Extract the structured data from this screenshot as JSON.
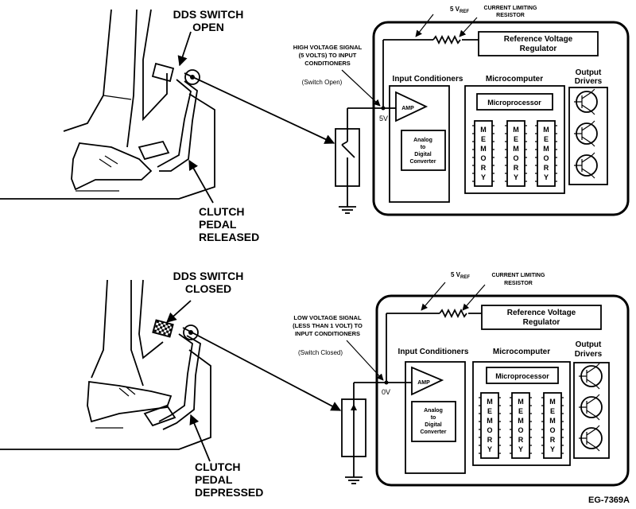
{
  "diagram_id": "EG-7369A",
  "panels": [
    {
      "switch_title_line1": "DDS SWITCH",
      "switch_title_line2": "OPEN",
      "pedal_line1": "CLUTCH",
      "pedal_line2": "PEDAL",
      "pedal_line3": "RELEASED",
      "vref": "5 V",
      "vref_sub": "REF",
      "resistor_line1": "CURRENT LIMITING",
      "resistor_line2": "RESISTOR",
      "signal_line1": "HIGH VOLTAGE SIGNAL",
      "signal_line2": "(5 VOLTS) TO INPUT",
      "signal_line3": "CONDITIONERS",
      "switch_state": "(Switch Open)",
      "node_voltage": "5V",
      "regulator_line1": "Reference Voltage",
      "regulator_line2": "Regulator",
      "input_conditioners": "Input Conditioners",
      "microcomputer": "Microcomputer",
      "output_line1": "Output",
      "output_line2": "Drivers",
      "amp": "AMP",
      "adc_line1": "Analog",
      "adc_line2": "to",
      "adc_line3": "Digital",
      "adc_line4": "Converter",
      "microprocessor": "Microprocessor",
      "memory": [
        "M",
        "E",
        "M",
        "O",
        "R",
        "Y"
      ]
    },
    {
      "switch_title_line1": "DDS SWITCH",
      "switch_title_line2": "CLOSED",
      "pedal_line1": "CLUTCH",
      "pedal_line2": "PEDAL",
      "pedal_line3": "DEPRESSED",
      "vref": "5 V",
      "vref_sub": "REF",
      "resistor_line1": "CURRENT LIMITING",
      "resistor_line2": "RESISTOR",
      "signal_line1": "LOW VOLTAGE SIGNAL",
      "signal_line2": "(LESS THAN 1 VOLT) TO",
      "signal_line3": "INPUT CONDITIONERS",
      "switch_state": "(Switch Closed)",
      "node_voltage": "0V",
      "regulator_line1": "Reference Voltage",
      "regulator_line2": "Regulator",
      "input_conditioners": "Input Conditioners",
      "microcomputer": "Microcomputer",
      "output_line1": "Output",
      "output_line2": "Drivers",
      "amp": "AMP",
      "adc_line1": "Analog",
      "adc_line2": "to",
      "adc_line3": "Digital",
      "adc_line4": "Converter",
      "microprocessor": "Microprocessor",
      "memory": [
        "M",
        "E",
        "M",
        "O",
        "R",
        "Y"
      ]
    }
  ]
}
